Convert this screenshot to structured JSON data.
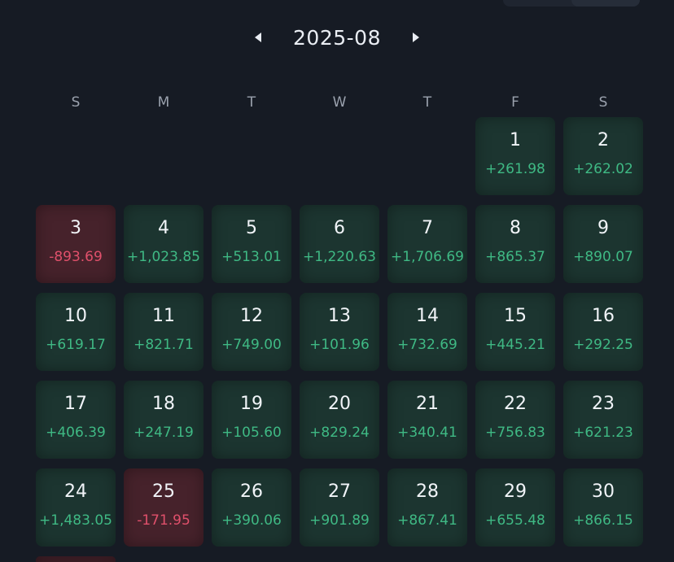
{
  "calendar": {
    "month_label": "2025-08",
    "prev_icon": "caret-left-icon",
    "next_icon": "caret-right-icon",
    "weekdays": [
      "S",
      "M",
      "T",
      "W",
      "T",
      "F",
      "S"
    ],
    "colors": {
      "profit_bg": "#1c3530",
      "profit_text": "#3fb984",
      "loss_bg": "#46222b",
      "loss_text": "#e0506b"
    },
    "days": [
      {
        "day": "1",
        "pnl": "+261.98",
        "status": "profit"
      },
      {
        "day": "2",
        "pnl": "+262.02",
        "status": "profit"
      },
      {
        "day": "3",
        "pnl": "-893.69",
        "status": "loss"
      },
      {
        "day": "4",
        "pnl": "+1,023.85",
        "status": "profit"
      },
      {
        "day": "5",
        "pnl": "+513.01",
        "status": "profit"
      },
      {
        "day": "6",
        "pnl": "+1,220.63",
        "status": "profit"
      },
      {
        "day": "7",
        "pnl": "+1,706.69",
        "status": "profit"
      },
      {
        "day": "8",
        "pnl": "+865.37",
        "status": "profit"
      },
      {
        "day": "9",
        "pnl": "+890.07",
        "status": "profit"
      },
      {
        "day": "10",
        "pnl": "+619.17",
        "status": "profit"
      },
      {
        "day": "11",
        "pnl": "+821.71",
        "status": "profit"
      },
      {
        "day": "12",
        "pnl": "+749.00",
        "status": "profit"
      },
      {
        "day": "13",
        "pnl": "+101.96",
        "status": "profit"
      },
      {
        "day": "14",
        "pnl": "+732.69",
        "status": "profit"
      },
      {
        "day": "15",
        "pnl": "+445.21",
        "status": "profit"
      },
      {
        "day": "16",
        "pnl": "+292.25",
        "status": "profit"
      },
      {
        "day": "17",
        "pnl": "+406.39",
        "status": "profit"
      },
      {
        "day": "18",
        "pnl": "+247.19",
        "status": "profit"
      },
      {
        "day": "19",
        "pnl": "+105.60",
        "status": "profit"
      },
      {
        "day": "20",
        "pnl": "+829.24",
        "status": "profit"
      },
      {
        "day": "21",
        "pnl": "+340.41",
        "status": "profit"
      },
      {
        "day": "22",
        "pnl": "+756.83",
        "status": "profit"
      },
      {
        "day": "23",
        "pnl": "+621.23",
        "status": "profit"
      },
      {
        "day": "24",
        "pnl": "+1,483.05",
        "status": "profit"
      },
      {
        "day": "25",
        "pnl": "-171.95",
        "status": "loss"
      },
      {
        "day": "26",
        "pnl": "+390.06",
        "status": "profit"
      },
      {
        "day": "27",
        "pnl": "+901.89",
        "status": "profit"
      },
      {
        "day": "28",
        "pnl": "+867.41",
        "status": "profit"
      },
      {
        "day": "29",
        "pnl": "+655.48",
        "status": "profit"
      },
      {
        "day": "30",
        "pnl": "+866.15",
        "status": "profit"
      }
    ]
  }
}
